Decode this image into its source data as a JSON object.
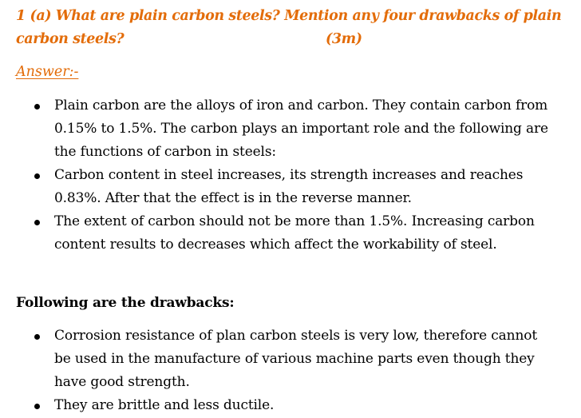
{
  "question": {
    "line1": "1 (a) What are plain carbon steels? Mention any four drawbacks of plain",
    "line2": "carbon steels?",
    "marks": "(3m)"
  },
  "answer_label": "Answer:-",
  "intro_points": [
    "Plain carbon are the alloys of iron and carbon. They contain carbon from 0.15% to 1.5%. The carbon plays an important role and the following are the functions of carbon in steels:",
    "Carbon content in steel increases, its strength increases and reaches 0.83%. After that the effect is in the reverse manner.",
    "The extent of carbon should not be more than 1.5%. Increasing carbon content results to decreases which affect the workability of steel."
  ],
  "drawbacks_heading": "Following are the drawbacks:",
  "drawbacks": [
    "Corrosion resistance of plan carbon steels is very low, therefore cannot be used in the manufacture of various machine parts even though they have good strength.",
    "They are brittle and less ductile."
  ],
  "colors": {
    "heading_orange": "#e36c09",
    "body_text": "#000000"
  }
}
